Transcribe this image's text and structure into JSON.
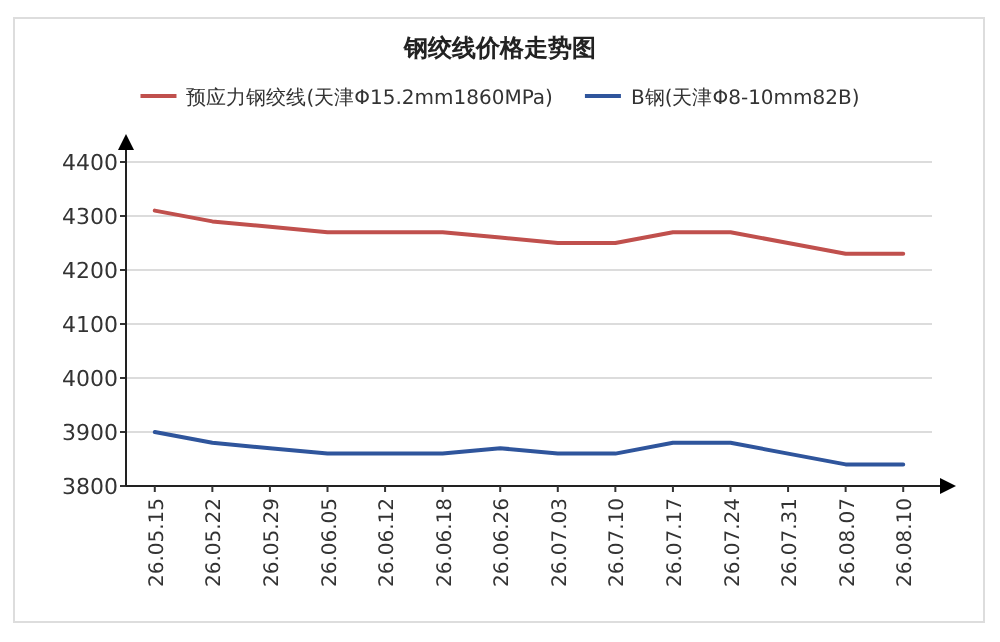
{
  "chart_data": {
    "type": "line",
    "title": "钢绞线价格走势图",
    "categories": [
      "26.05.15",
      "26.05.22",
      "26.05.29",
      "26.06.05",
      "26.06.12",
      "26.06.18",
      "26.06.26",
      "26.07.03",
      "26.07.10",
      "26.07.17",
      "26.07.24",
      "26.07.31",
      "26.08.07",
      "26.08.10"
    ],
    "series": [
      {
        "name": "预应力钢绞线(天津Φ15.2mm1860MPa)",
        "color": "#c0504d",
        "values": [
          4310,
          4290,
          4280,
          4270,
          4270,
          4270,
          4260,
          4250,
          4250,
          4270,
          4270,
          4250,
          4230,
          4230
        ]
      },
      {
        "name": "B钢(天津Φ8-10mm82B)",
        "color": "#2f559c",
        "values": [
          3900,
          3880,
          3870,
          3860,
          3860,
          3860,
          3870,
          3860,
          3860,
          3880,
          3880,
          3860,
          3840,
          3840
        ]
      }
    ],
    "ylim": [
      3800,
      4400
    ],
    "yticks": [
      3800,
      3900,
      4000,
      4100,
      4200,
      4300,
      4400
    ],
    "grid": "y",
    "legend": "top"
  }
}
